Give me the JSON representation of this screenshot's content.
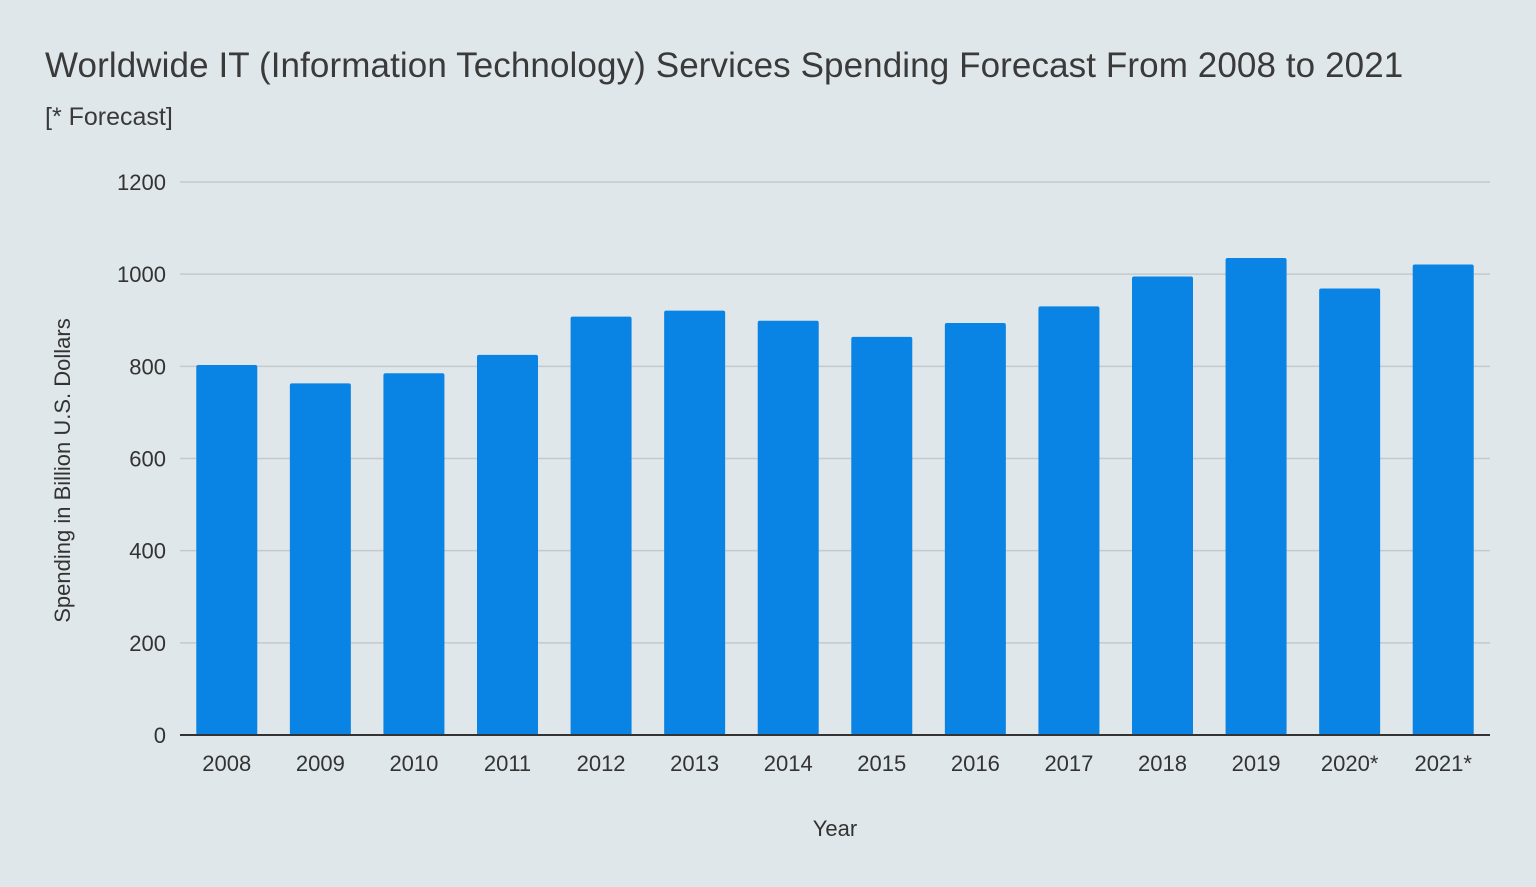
{
  "chart_data": {
    "type": "bar",
    "title": "Worldwide IT (Information Technology) Services Spending Forecast From 2008 to 2021",
    "subtitle": "[* Forecast]",
    "xlabel": "Year",
    "ylabel": "Spending in Billion U.S. Dollars",
    "categories": [
      "2008",
      "2009",
      "2010",
      "2011",
      "2012",
      "2013",
      "2014",
      "2015",
      "2016",
      "2017",
      "2018",
      "2019",
      "2020*",
      "2021*"
    ],
    "values": [
      803,
      763,
      785,
      825,
      908,
      921,
      899,
      864,
      894,
      930,
      995,
      1035,
      969,
      1021
    ],
    "ylim": [
      0,
      1200
    ],
    "yticks": [
      0,
      200,
      400,
      600,
      800,
      1000,
      1200
    ],
    "grid": true,
    "legend": "none",
    "colors": {
      "bar": "#0a84e4",
      "grid": "#c3c9cd",
      "axis": "#333333",
      "background": "#dfe7eb"
    }
  }
}
